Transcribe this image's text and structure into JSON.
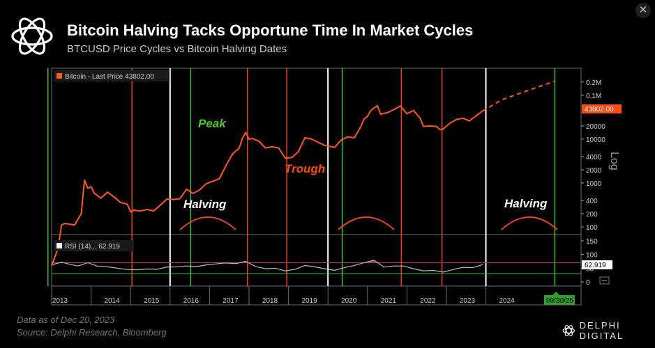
{
  "header": {
    "title": "Bitcoin Halving Tacks Opportune Time In Market Cycles",
    "subtitle": "BTCUSD Price Cycles vs Bitcoin Halving Dates",
    "close_icon": "close-icon"
  },
  "footer": {
    "date_note": "Data as of Dec 20, 2023",
    "source_note": "Source: Delphi Research, Bloomberg",
    "brand": "DELPHI DIGITAL",
    "brand_icon": "delphi-logo-icon"
  },
  "colors": {
    "price_line": "#ff5a1f",
    "halving_line": "#3fbf3f",
    "peak_trough_line": "#e2471c",
    "cycle_divider": "#ffffff",
    "peak_text": "#4ec921",
    "trough_text": "#ff4a12",
    "rsi_line": "#bdbdbd",
    "rsi_fill": "#8a3b3b"
  },
  "chart_data": [
    {
      "type": "line",
      "panel": "price",
      "series": [
        {
          "name": "Bitcoin - Last Price 43802.00",
          "x": [
            "2013-01",
            "2013-03",
            "2013-04",
            "2013-05",
            "2013-08",
            "2013-10",
            "2013-11",
            "2013-12",
            "2014-01",
            "2014-02",
            "2014-04",
            "2014-06",
            "2014-08",
            "2014-10",
            "2014-12",
            "2015-01",
            "2015-02",
            "2015-04",
            "2015-06",
            "2015-08",
            "2015-10",
            "2015-12",
            "2016-02",
            "2016-04",
            "2016-06",
            "2016-08",
            "2016-10",
            "2016-12",
            "2017-02",
            "2017-04",
            "2017-06",
            "2017-08",
            "2017-10",
            "2017-11",
            "2017-12",
            "2018-01",
            "2018-02",
            "2018-04",
            "2018-06",
            "2018-08",
            "2018-10",
            "2018-12",
            "2019-02",
            "2019-04",
            "2019-06",
            "2019-08",
            "2019-10",
            "2019-12",
            "2020-03",
            "2020-05",
            "2020-07",
            "2020-09",
            "2020-11",
            "2020-12",
            "2021-01",
            "2021-02",
            "2021-04",
            "2021-05",
            "2021-07",
            "2021-09",
            "2021-11",
            "2022-01",
            "2022-03",
            "2022-05",
            "2022-06",
            "2022-08",
            "2022-10",
            "2022-11",
            "2022-12",
            "2023-02",
            "2023-04",
            "2023-06",
            "2023-08",
            "2023-10",
            "2023-12"
          ],
          "y": [
            13,
            33,
            110,
            120,
            110,
            200,
            1150,
            760,
            820,
            580,
            450,
            620,
            480,
            360,
            330,
            220,
            240,
            230,
            250,
            230,
            310,
            430,
            420,
            440,
            720,
            580,
            700,
            960,
            1100,
            1250,
            2500,
            4600,
            6200,
            10500,
            14200,
            10000,
            10300,
            9000,
            6300,
            6700,
            6300,
            3700,
            3800,
            5200,
            10800,
            10000,
            8500,
            7200,
            6500,
            9500,
            11300,
            10700,
            19500,
            29000,
            33000,
            45000,
            58000,
            37000,
            40000,
            47000,
            57000,
            38000,
            45000,
            30000,
            19500,
            20000,
            19400,
            16500,
            17000,
            23000,
            28000,
            30000,
            26000,
            34000,
            43802
          ]
        },
        {
          "name": "projection",
          "x": [
            "2023-12",
            "2024-06",
            "2025-09-30"
          ],
          "y": [
            43802,
            80000,
            210000
          ]
        }
      ],
      "y_scale": "log",
      "y_ticks": [
        "0.2M",
        "0.1M",
        "20000",
        "10000",
        "4000",
        "2000",
        "1000",
        "400",
        "200",
        "100"
      ],
      "y_axis_label": "Log",
      "last_value_label": "43802.00",
      "x_tick_labels": [
        "2013",
        "2014",
        "2015",
        "2016",
        "2017",
        "2018",
        "2019",
        "2020",
        "2021",
        "2022",
        "2023",
        "2024"
      ],
      "x_end_label": "09/30/25",
      "vertical_markers": [
        {
          "kind": "halving",
          "x": "2012-11-28"
        },
        {
          "kind": "trough",
          "x": "2015-01-14"
        },
        {
          "kind": "cycle_start",
          "x": "2016-01-01"
        },
        {
          "kind": "halving",
          "x": "2016-07-09"
        },
        {
          "kind": "peak",
          "x": "2017-12-17"
        },
        {
          "kind": "trough",
          "x": "2018-12-15"
        },
        {
          "kind": "cycle_start",
          "x": "2019-12-31"
        },
        {
          "kind": "halving",
          "x": "2020-05-11"
        },
        {
          "kind": "peak",
          "x": "2021-11-10"
        },
        {
          "kind": "trough",
          "x": "2022-11-21"
        },
        {
          "kind": "cycle_start",
          "x": "2023-12-31"
        },
        {
          "kind": "halving",
          "x": "2025-09-30"
        }
      ],
      "annotations": [
        "Peak",
        "Trough",
        "Halving",
        "Halving"
      ]
    },
    {
      "type": "area",
      "panel": "rsi",
      "series": [
        {
          "name": "RSI (14)... 62.919",
          "x": [
            "2013-01",
            "2013-04",
            "2013-06",
            "2013-09",
            "2013-12",
            "2014-03",
            "2014-06",
            "2014-09",
            "2014-12",
            "2015-03",
            "2015-06",
            "2015-09",
            "2015-12",
            "2016-03",
            "2016-06",
            "2016-09",
            "2016-12",
            "2017-03",
            "2017-06",
            "2017-09",
            "2017-12",
            "2018-03",
            "2018-06",
            "2018-09",
            "2018-12",
            "2019-03",
            "2019-06",
            "2019-09",
            "2019-12",
            "2020-03",
            "2020-06",
            "2020-09",
            "2020-12",
            "2021-03",
            "2021-06",
            "2021-09",
            "2021-12",
            "2022-03",
            "2022-06",
            "2022-09",
            "2022-12",
            "2023-03",
            "2023-06",
            "2023-09",
            "2023-12"
          ],
          "y": [
            62,
            72,
            66,
            58,
            70,
            57,
            55,
            50,
            45,
            44,
            47,
            46,
            54,
            55,
            58,
            56,
            62,
            66,
            69,
            67,
            75,
            56,
            48,
            50,
            40,
            46,
            60,
            55,
            48,
            42,
            52,
            60,
            70,
            79,
            54,
            58,
            58,
            48,
            40,
            42,
            36,
            45,
            53,
            52,
            62.919
          ]
        }
      ],
      "y_ticks": [
        "150",
        "100",
        "50",
        "0"
      ],
      "reference_lines": [
        70,
        30
      ],
      "last_value_label": "62.919"
    }
  ]
}
